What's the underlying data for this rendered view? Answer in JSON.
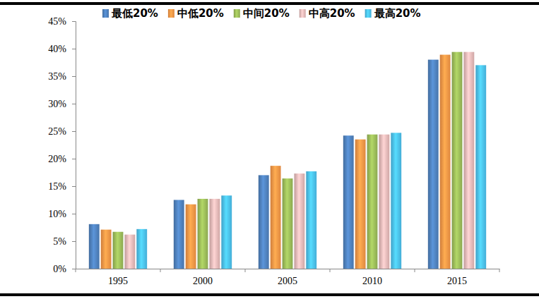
{
  "chart_data": {
    "type": "bar",
    "categories": [
      "1995",
      "2000",
      "2005",
      "2010",
      "2015"
    ],
    "series": [
      {
        "name": "最低20%",
        "color": "#4f81bd",
        "values": [
          8.1,
          12.5,
          17.0,
          24.2,
          38.0
        ]
      },
      {
        "name": "中低20%",
        "color": "#f79646",
        "values": [
          7.1,
          11.7,
          18.7,
          23.5,
          38.9
        ]
      },
      {
        "name": "中间20%",
        "color": "#9bbb59",
        "values": [
          6.7,
          12.7,
          16.4,
          24.4,
          39.4
        ]
      },
      {
        "name": "中高20%",
        "color": "#e6b9b8",
        "values": [
          6.2,
          12.7,
          17.3,
          24.4,
          39.4
        ]
      },
      {
        "name": "最高20%",
        "color": "#4bc0ef",
        "values": [
          7.2,
          13.3,
          17.7,
          24.7,
          37.0
        ]
      }
    ],
    "ylim": [
      0,
      45
    ],
    "yticks": [
      {
        "value": 0,
        "label": "0%"
      },
      {
        "value": 5,
        "label": "5%"
      },
      {
        "value": 10,
        "label": "10%"
      },
      {
        "value": 15,
        "label": "15%"
      },
      {
        "value": 20,
        "label": "20%"
      },
      {
        "value": 25,
        "label": "25%"
      },
      {
        "value": 30,
        "label": "30%"
      },
      {
        "value": 35,
        "label": "35%"
      },
      {
        "value": 40,
        "label": "40%"
      },
      {
        "value": 45,
        "label": "45%"
      }
    ],
    "grid": false,
    "legend": "top"
  }
}
